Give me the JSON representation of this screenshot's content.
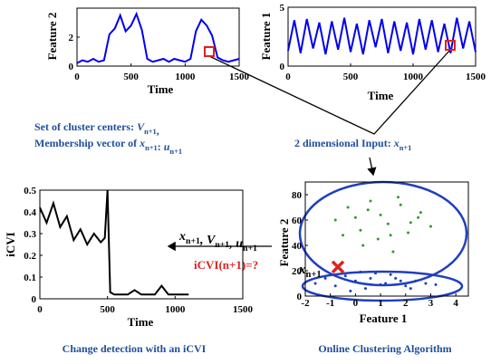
{
  "charts": [
    {
      "type": "line",
      "ylabel": "Feature 2",
      "xlabel": "Time",
      "color": "#0000ee",
      "xlim": [
        0,
        1500
      ],
      "ylim": [
        0,
        4
      ],
      "xticks": [
        0,
        500,
        1000,
        1500
      ],
      "yticks": [
        0,
        2
      ],
      "x": [
        0,
        50,
        100,
        150,
        200,
        250,
        300,
        350,
        400,
        450,
        500,
        550,
        600,
        650,
        700,
        750,
        800,
        850,
        900,
        950,
        1000,
        1050,
        1100,
        1150,
        1200,
        1250,
        1300,
        1350,
        1400,
        1450,
        1500
      ],
      "values": [
        0.2,
        0.4,
        0.3,
        0.5,
        0.3,
        0.4,
        2.2,
        2.6,
        3.5,
        2.4,
        2.8,
        3.6,
        2.5,
        0.5,
        0.3,
        0.4,
        0.5,
        0.3,
        0.5,
        0.4,
        0.3,
        0.5,
        2.4,
        3.2,
        2.8,
        2.1,
        0.6,
        0.4,
        0.3,
        0.4,
        0.5
      ]
    },
    {
      "type": "line",
      "ylabel": "Feature 1",
      "xlabel": "Time",
      "color": "#0000ee",
      "xlim": [
        0,
        1500
      ],
      "ylim": [
        0,
        5
      ],
      "xticks": [
        0,
        500,
        1000,
        1500
      ],
      "yticks": [
        0,
        5
      ],
      "x": [
        0,
        50,
        100,
        150,
        200,
        250,
        300,
        350,
        400,
        450,
        500,
        550,
        600,
        650,
        700,
        750,
        800,
        850,
        900,
        950,
        1000,
        1050,
        1100,
        1150,
        1200,
        1250,
        1300,
        1350,
        1400,
        1450,
        1500
      ],
      "values": [
        1.3,
        3.9,
        1.1,
        4.0,
        1.5,
        3.7,
        1.0,
        3.8,
        1.4,
        4.1,
        1.2,
        3.6,
        1.0,
        3.9,
        1.6,
        4.0,
        1.1,
        3.8,
        1.3,
        3.7,
        1.0,
        4.0,
        1.4,
        3.9,
        1.2,
        3.6,
        1.1,
        4.1,
        1.5,
        3.8,
        1.2
      ]
    },
    {
      "type": "line",
      "ylabel": "iCVI",
      "xlabel": "Time",
      "color": "#000000",
      "xlim": [
        0,
        1500
      ],
      "ylim": [
        0,
        0.5
      ],
      "xticks": [
        0,
        500,
        1000,
        1500
      ],
      "yticks": [
        0,
        0.1,
        0.2,
        0.3,
        0.4,
        0.5
      ],
      "x": [
        0,
        50,
        100,
        150,
        200,
        250,
        300,
        350,
        400,
        450,
        480,
        500,
        520,
        550,
        600,
        650,
        700,
        750,
        800,
        850,
        900,
        950,
        1000,
        1050,
        1100
      ],
      "values": [
        0.42,
        0.35,
        0.44,
        0.33,
        0.38,
        0.27,
        0.32,
        0.25,
        0.3,
        0.26,
        0.28,
        0.5,
        0.03,
        0.02,
        0.02,
        0.02,
        0.04,
        0.02,
        0.02,
        0.02,
        0.06,
        0.02,
        0.02,
        0.02,
        0.02
      ]
    },
    {
      "type": "scatter",
      "ylabel": "Feature 2",
      "xlabel": "Feature 1",
      "xlim": [
        -2,
        4.5
      ],
      "ylim": [
        0,
        90
      ],
      "xticks": [
        -2,
        -1,
        0,
        1,
        2,
        3,
        4
      ],
      "yticks": [
        0,
        20,
        40,
        60,
        80
      ],
      "series": [
        {
          "color": "#2e9b2e",
          "x": [
            -0.8,
            -0.3,
            0.2,
            0.6,
            1.0,
            1.4,
            1.8,
            2.2,
            2.6,
            3.0,
            -0.5,
            0.0,
            0.5,
            0.9,
            1.3,
            1.7,
            2.1,
            2.5,
            0.3,
            1.5
          ],
          "values": [
            60,
            70,
            52,
            75,
            64,
            48,
            72,
            58,
            66,
            55,
            48,
            62,
            68,
            45,
            57,
            78,
            50,
            62,
            40,
            35
          ]
        },
        {
          "color": "#1f3fbf",
          "x": [
            -1.6,
            -1.2,
            -0.8,
            -0.4,
            0,
            0.4,
            0.8,
            1.2,
            1.6,
            2.0,
            2.4,
            2.8,
            3.2,
            -0.2,
            0.6,
            1.4,
            2.2,
            1.0,
            0.2,
            1.8
          ],
          "values": [
            10,
            14,
            8,
            16,
            12,
            6,
            18,
            10,
            14,
            8,
            12,
            10,
            9,
            4,
            14,
            17,
            6,
            9,
            19,
            12
          ]
        },
        {
          "color": "#e02020",
          "marker": "x",
          "x": [
            -0.7
          ],
          "values": [
            23
          ]
        }
      ]
    }
  ],
  "labels": {
    "centers": [
      {
        "text": "Set of cluster centers"
      },
      {
        "text": ": "
      },
      {
        "text": "V",
        "sub": "n+1"
      },
      {
        "text": ","
      }
    ],
    "membership": [
      {
        "text": "Membership vector of "
      },
      {
        "text": "x",
        "sub": "n+1"
      },
      {
        "text": ": "
      },
      {
        "text": "u",
        "sub": "n+1"
      }
    ],
    "input": [
      {
        "text": "2 dimensional Input: "
      },
      {
        "text": "x",
        "sub": "n+1"
      }
    ],
    "feedback": [
      {
        "text": "x",
        "sub": "n+1"
      },
      {
        "text": ", "
      },
      {
        "text": "V",
        "sub": "n+1"
      },
      {
        "text": ", "
      },
      {
        "text": "u",
        "sub": "n+1"
      }
    ],
    "query": "iCVI(n+1)=?",
    "point": [
      {
        "text": "x",
        "sub": "n+1"
      }
    ],
    "caption_left": "Change detection with an iCVI",
    "caption_right": "Online Clustering Algorithm"
  }
}
